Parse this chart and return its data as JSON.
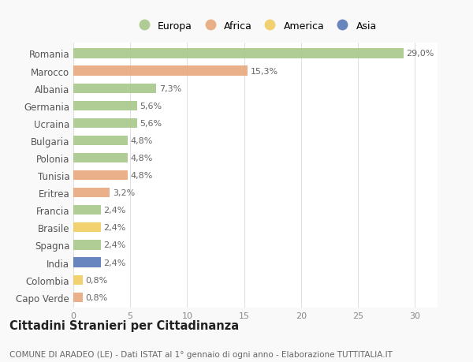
{
  "countries": [
    "Romania",
    "Marocco",
    "Albania",
    "Germania",
    "Ucraina",
    "Bulgaria",
    "Polonia",
    "Tunisia",
    "Eritrea",
    "Francia",
    "Brasile",
    "Spagna",
    "India",
    "Colombia",
    "Capo Verde"
  ],
  "values": [
    29.0,
    15.3,
    7.3,
    5.6,
    5.6,
    4.8,
    4.8,
    4.8,
    3.2,
    2.4,
    2.4,
    2.4,
    2.4,
    0.8,
    0.8
  ],
  "labels": [
    "29,0%",
    "15,3%",
    "7,3%",
    "5,6%",
    "5,6%",
    "4,8%",
    "4,8%",
    "4,8%",
    "3,2%",
    "2,4%",
    "2,4%",
    "2,4%",
    "2,4%",
    "0,8%",
    "0,8%"
  ],
  "continents": [
    "Europa",
    "Africa",
    "Europa",
    "Europa",
    "Europa",
    "Europa",
    "Europa",
    "Africa",
    "Africa",
    "Europa",
    "America",
    "Europa",
    "Asia",
    "America",
    "Africa"
  ],
  "colors": {
    "Europa": "#a8c88a",
    "Africa": "#e8a87c",
    "America": "#f0cc60",
    "Asia": "#5878b8"
  },
  "legend_order": [
    "Europa",
    "Africa",
    "America",
    "Asia"
  ],
  "title": "Cittadini Stranieri per Cittadinanza",
  "subtitle": "COMUNE DI ARADEO (LE) - Dati ISTAT al 1° gennaio di ogni anno - Elaborazione TUTTITALIA.IT",
  "xlim": [
    0,
    32
  ],
  "xticks": [
    0,
    5,
    10,
    15,
    20,
    25,
    30
  ],
  "background_color": "#f9f9f9",
  "bar_background": "#ffffff",
  "grid_color": "#e0e0e0",
  "label_fontsize": 8,
  "ytick_fontsize": 8.5,
  "xtick_fontsize": 8,
  "title_fontsize": 10.5,
  "subtitle_fontsize": 7.5,
  "legend_fontsize": 9
}
